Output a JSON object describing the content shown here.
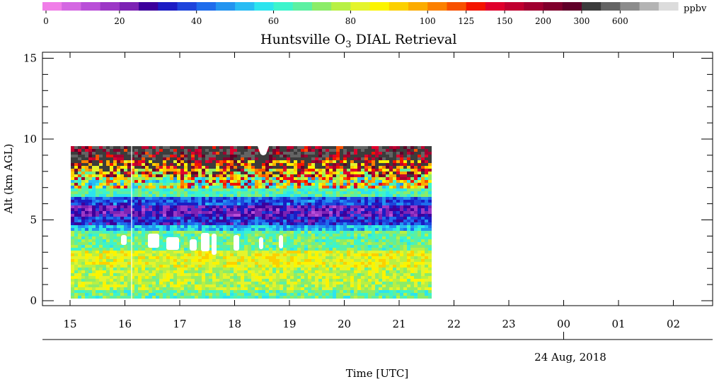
{
  "chart_data": {
    "type": "heatmap",
    "title_main": "Huntsville O",
    "title_sub": "3",
    "title_rest": " DIAL Retrieval",
    "ylabel": "Alt (km AGL)",
    "xlabel": "Time [UTC]",
    "date_label": "24 Aug, 2018",
    "ylim": [
      0,
      15.5
    ],
    "y_ticks": [
      "0",
      "5",
      "10",
      "15"
    ],
    "x_ticks": [
      "15",
      "16",
      "17",
      "18",
      "19",
      "20",
      "21",
      "22",
      "23",
      "00",
      "01",
      "02"
    ],
    "x_range_hours": [
      14.5,
      26.6
    ],
    "data_extent": {
      "t_start_hour": 15.0,
      "t_end_hour": 21.5,
      "alt_min_km": 0.2,
      "alt_max_km": 9.6
    },
    "colorbar": {
      "unit": "ppbv",
      "tick_labels": [
        "0",
        "20",
        "40",
        "60",
        "80",
        "100",
        "125",
        "150",
        "200",
        "300",
        "600"
      ],
      "colors": [
        "#f07ee8",
        "#d468e2",
        "#b94fd8",
        "#9c38c6",
        "#7c22b4",
        "#3c009c",
        "#1c1cc4",
        "#1e44dc",
        "#1e6cec",
        "#2294f0",
        "#28bcf4",
        "#2ce4ee",
        "#3cf4cc",
        "#5cf0a2",
        "#8cec68",
        "#b8f044",
        "#e4f42c",
        "#fcf400",
        "#fcd000",
        "#fcac00",
        "#fc8000",
        "#f85000",
        "#f41400",
        "#e0002c",
        "#c00030",
        "#a00030",
        "#80002c",
        "#600028",
        "#3c3c3c",
        "#646464",
        "#8c8c8c",
        "#b4b4b4",
        "#dcdcdc"
      ]
    },
    "profile_description_km": [
      {
        "alt": [
          0.2,
          1.0
        ],
        "ppbv_approx": 55
      },
      {
        "alt": [
          1.0,
          3.2
        ],
        "ppbv_approx": 65
      },
      {
        "alt": [
          3.2,
          4.6
        ],
        "ppbv_approx": 50
      },
      {
        "alt": [
          4.6,
          6.3
        ],
        "ppbv_approx": 25
      },
      {
        "alt": [
          6.3,
          7.2
        ],
        "ppbv_approx": 50
      },
      {
        "alt": [
          7.2,
          8.4
        ],
        "ppbv_approx": 85
      },
      {
        "alt": [
          8.4,
          9.6
        ],
        "ppbv_approx": 110
      }
    ],
    "grid": false
  }
}
